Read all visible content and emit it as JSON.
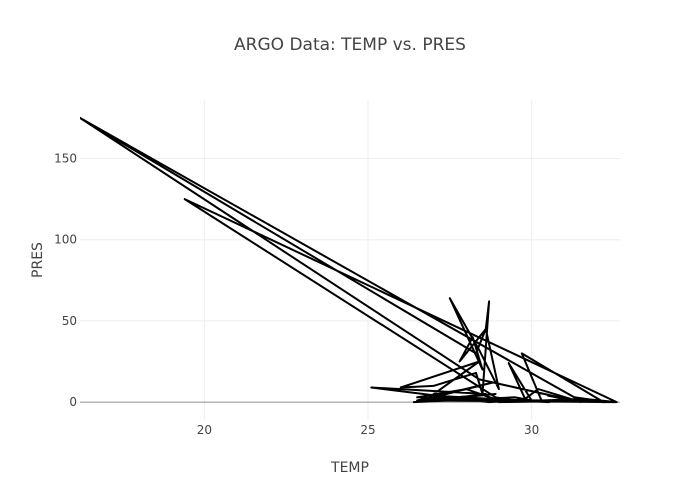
{
  "chart_data": {
    "type": "line",
    "title": "ARGO Data: TEMP vs. PRES",
    "xlabel": "TEMP",
    "ylabel": "PRES",
    "xlim": [
      16.2,
      32.7
    ],
    "ylim": [
      -11,
      186
    ],
    "x_ticks": [
      20,
      25,
      30
    ],
    "y_ticks": [
      0,
      50,
      100,
      150
    ],
    "grid": true,
    "line_color": "#000000",
    "series": [
      {
        "x": [
          16.2,
          28.3,
          28.6,
          29.0,
          28.4,
          27.5,
          28.5,
          28.2,
          27.8,
          28.6,
          28.7,
          28.5,
          28.3,
          27.0,
          26.0,
          28.4,
          26.8,
          28.8,
          26.5,
          28.9,
          26.4,
          29.5,
          30.0,
          29.3,
          29.8,
          30.2,
          31.2,
          30.5,
          31.5,
          28.4,
          16.2,
          31.3,
          32.0,
          29.0,
          31.6,
          32.6,
          30.3,
          29.7,
          32.2,
          26.5,
          28.0,
          29.0,
          27.0,
          30.5,
          31.0,
          32.6,
          19.4,
          28.9,
          29.5,
          28.7,
          25.1,
          28.6,
          27.0,
          32.6
        ],
        "y": [
          175,
          30,
          45,
          8,
          32,
          64,
          20,
          40,
          25,
          45,
          62,
          5,
          18,
          10,
          9,
          25,
          2,
          12,
          1,
          5,
          0,
          3,
          1,
          24,
          2,
          8,
          2,
          4,
          0,
          14,
          175,
          3,
          1,
          0,
          2,
          0,
          1,
          30,
          0,
          3,
          8,
          1,
          4,
          0,
          2,
          0,
          125,
          3,
          1,
          0,
          9,
          5,
          1,
          0
        ]
      }
    ]
  }
}
